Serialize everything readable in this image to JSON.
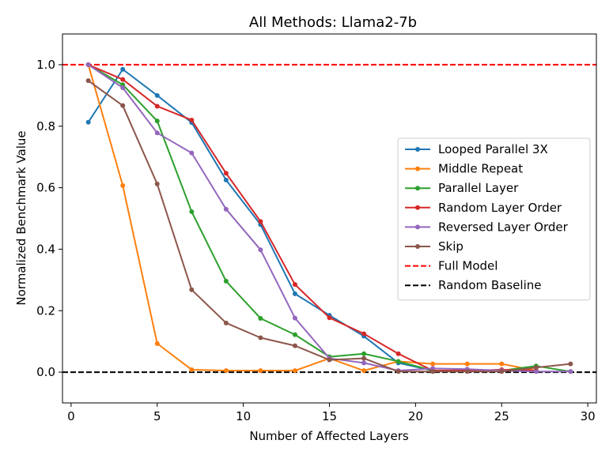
{
  "chart_data": {
    "type": "line",
    "title": "All Methods: Llama2-7b",
    "xlabel": "Number of Affected Layers",
    "ylabel": "Normalized Benchmark Value",
    "xlim": [
      -0.5,
      30.5
    ],
    "ylim": [
      -0.1,
      1.1
    ],
    "xticks": [
      0,
      5,
      10,
      15,
      20,
      25,
      30
    ],
    "yticks": [
      0.0,
      0.2,
      0.4,
      0.6,
      0.8,
      1.0
    ],
    "xtick_labels": [
      "0",
      "5",
      "10",
      "15",
      "20",
      "25",
      "30"
    ],
    "ytick_labels": [
      "0.0",
      "0.2",
      "0.4",
      "0.6",
      "0.8",
      "1.0"
    ],
    "legend_position": "center-right",
    "x": [
      1,
      3,
      5,
      7,
      9,
      11,
      13,
      15,
      17,
      19,
      21,
      23,
      25,
      27,
      29
    ],
    "series": [
      {
        "name": "Looped Parallel 3X",
        "color": "#1f77b4",
        "values": [
          0.813,
          0.985,
          0.9,
          0.812,
          0.625,
          0.48,
          0.255,
          0.185,
          0.117,
          0.03,
          0.005,
          0.005,
          0.005,
          0.005,
          null
        ]
      },
      {
        "name": "Middle Repeat",
        "color": "#ff7f0e",
        "values": [
          1.0,
          0.607,
          0.093,
          0.008,
          0.005,
          0.005,
          0.005,
          0.045,
          0.005,
          0.035,
          0.027,
          0.027,
          0.027,
          0.005,
          null
        ]
      },
      {
        "name": "Parallel Layer",
        "color": "#2ca02c",
        "values": [
          1.0,
          0.935,
          0.817,
          0.522,
          0.296,
          0.175,
          0.122,
          0.05,
          0.06,
          0.035,
          0.005,
          0.005,
          0.005,
          0.02,
          0.002
        ]
      },
      {
        "name": "Random Layer Order",
        "color": "#d62728",
        "values": [
          1.0,
          0.952,
          0.865,
          0.82,
          0.647,
          0.49,
          0.285,
          0.177,
          0.125,
          0.06,
          0.005,
          0.005,
          0.008,
          0.005,
          null
        ]
      },
      {
        "name": "Reversed Layer Order",
        "color": "#9467bd",
        "values": [
          1.0,
          0.925,
          0.778,
          0.713,
          0.53,
          0.398,
          0.176,
          0.045,
          0.03,
          0.005,
          0.012,
          0.01,
          0.005,
          0.002,
          0.002
        ]
      },
      {
        "name": "Skip",
        "color": "#8c564b",
        "values": [
          0.948,
          0.867,
          0.612,
          0.268,
          0.16,
          0.112,
          0.086,
          0.04,
          0.045,
          0.002,
          0.002,
          0.002,
          0.002,
          0.015,
          0.027
        ]
      }
    ],
    "reference_lines": [
      {
        "name": "Full Model",
        "y": 1.0,
        "color": "#ff0000",
        "style": "dashed"
      },
      {
        "name": "Random Baseline",
        "y": 0.0,
        "color": "#000000",
        "style": "dashed"
      }
    ]
  }
}
